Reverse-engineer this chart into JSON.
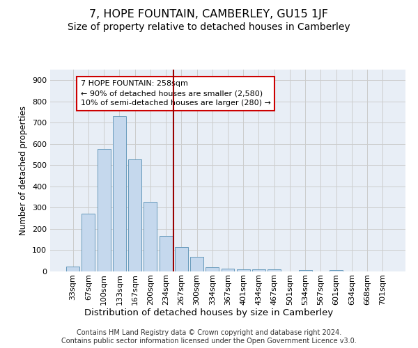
{
  "title": "7, HOPE FOUNTAIN, CAMBERLEY, GU15 1JF",
  "subtitle": "Size of property relative to detached houses in Camberley",
  "xlabel": "Distribution of detached houses by size in Camberley",
  "ylabel": "Number of detached properties",
  "categories": [
    "33sqm",
    "67sqm",
    "100sqm",
    "133sqm",
    "167sqm",
    "200sqm",
    "234sqm",
    "267sqm",
    "300sqm",
    "334sqm",
    "367sqm",
    "401sqm",
    "434sqm",
    "467sqm",
    "501sqm",
    "534sqm",
    "567sqm",
    "601sqm",
    "634sqm",
    "668sqm",
    "701sqm"
  ],
  "values": [
    22,
    272,
    575,
    730,
    528,
    328,
    168,
    115,
    68,
    20,
    13,
    11,
    9,
    9,
    0,
    8,
    0,
    8,
    0,
    0,
    0
  ],
  "bar_color": "#c5d8ed",
  "bar_edge_color": "#6699bb",
  "grid_color": "#cccccc",
  "bg_color": "#e8eef6",
  "vline_x": 6.5,
  "vline_color": "#990000",
  "annotation_text": "7 HOPE FOUNTAIN: 258sqm\n← 90% of detached houses are smaller (2,580)\n10% of semi-detached houses are larger (280) →",
  "annotation_box_color": "#cc0000",
  "footnote": "Contains HM Land Registry data © Crown copyright and database right 2024.\nContains public sector information licensed under the Open Government Licence v3.0.",
  "ylim": [
    0,
    950
  ],
  "yticks": [
    0,
    100,
    200,
    300,
    400,
    500,
    600,
    700,
    800,
    900
  ],
  "title_fontsize": 11.5,
  "subtitle_fontsize": 10,
  "xlabel_fontsize": 9.5,
  "ylabel_fontsize": 8.5,
  "tick_fontsize": 8,
  "annotation_fontsize": 8,
  "footnote_fontsize": 7
}
